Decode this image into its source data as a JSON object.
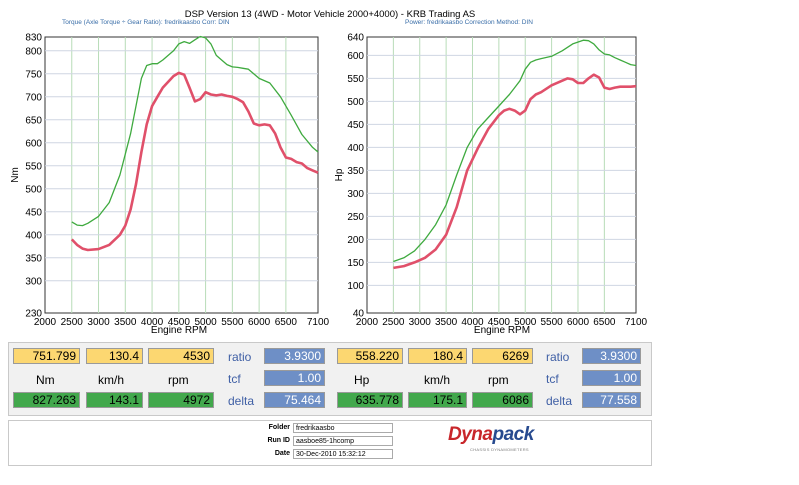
{
  "header": {
    "title": "DSP Version 13 (4WD - Motor Vehicle 2000+4000) - KRB Trading AS",
    "left_subtitle": "Torque (Axle Torque ÷ Gear Ratio): fredrikaasbo    Corr: DIN",
    "right_subtitle": "Power: fredrikaasbo    Correction Method: DIN"
  },
  "chart_data": [
    {
      "type": "line",
      "title": "",
      "xlabel": "Engine RPM",
      "ylabel": "Nm",
      "xlim": [
        2000,
        7100
      ],
      "ylim": [
        230,
        830
      ],
      "xticks": [
        "2000",
        "2500",
        "3000",
        "3500",
        "4000",
        "4500",
        "5000",
        "5500",
        "6000",
        "6500",
        "7100"
      ],
      "yticks": [
        "230",
        "300",
        "350",
        "400",
        "450",
        "500",
        "550",
        "600",
        "650",
        "700",
        "750",
        "800",
        "830"
      ],
      "grid": true,
      "series": [
        {
          "color": "#3faa3f",
          "points": [
            [
              2500,
              428
            ],
            [
              2600,
              421
            ],
            [
              2700,
              420
            ],
            [
              2800,
              425
            ],
            [
              3000,
              440
            ],
            [
              3200,
              470
            ],
            [
              3400,
              530
            ],
            [
              3600,
              620
            ],
            [
              3700,
              680
            ],
            [
              3800,
              740
            ],
            [
              3900,
              768
            ],
            [
              4000,
              772
            ],
            [
              4100,
              772
            ],
            [
              4200,
              780
            ],
            [
              4400,
              800
            ],
            [
              4500,
              815
            ],
            [
              4600,
              820
            ],
            [
              4700,
              816
            ],
            [
              4800,
              824
            ],
            [
              4900,
              831
            ],
            [
              5000,
              828
            ],
            [
              5100,
              815
            ],
            [
              5200,
              790
            ],
            [
              5300,
              780
            ],
            [
              5400,
              770
            ],
            [
              5500,
              765
            ],
            [
              5600,
              764
            ],
            [
              5700,
              762
            ],
            [
              5800,
              760
            ],
            [
              6000,
              740
            ],
            [
              6200,
              730
            ],
            [
              6400,
              700
            ],
            [
              6600,
              660
            ],
            [
              6800,
              618
            ],
            [
              7000,
              590
            ],
            [
              7100,
              580
            ]
          ]
        },
        {
          "color": "#e0506a",
          "points": [
            [
              2500,
              390
            ],
            [
              2600,
              378
            ],
            [
              2700,
              370
            ],
            [
              2800,
              367
            ],
            [
              3000,
              369
            ],
            [
              3200,
              378
            ],
            [
              3400,
              400
            ],
            [
              3500,
              420
            ],
            [
              3600,
              455
            ],
            [
              3700,
              510
            ],
            [
              3800,
              580
            ],
            [
              3900,
              640
            ],
            [
              4000,
              680
            ],
            [
              4100,
              700
            ],
            [
              4200,
              720
            ],
            [
              4400,
              745
            ],
            [
              4500,
              752
            ],
            [
              4600,
              748
            ],
            [
              4700,
              720
            ],
            [
              4800,
              690
            ],
            [
              4900,
              695
            ],
            [
              5000,
              710
            ],
            [
              5100,
              705
            ],
            [
              5200,
              703
            ],
            [
              5300,
              705
            ],
            [
              5400,
              702
            ],
            [
              5500,
              700
            ],
            [
              5600,
              695
            ],
            [
              5700,
              688
            ],
            [
              5800,
              668
            ],
            [
              5900,
              642
            ],
            [
              6000,
              638
            ],
            [
              6100,
              640
            ],
            [
              6200,
              638
            ],
            [
              6300,
              620
            ],
            [
              6400,
              590
            ],
            [
              6500,
              568
            ],
            [
              6600,
              565
            ],
            [
              6700,
              558
            ],
            [
              6800,
              555
            ],
            [
              6900,
              545
            ],
            [
              7000,
              540
            ],
            [
              7100,
              535
            ]
          ]
        }
      ]
    },
    {
      "type": "line",
      "title": "",
      "xlabel": "Engine RPM",
      "ylabel": "Hp",
      "xlim": [
        2000,
        7100
      ],
      "ylim": [
        40,
        640
      ],
      "xticks": [
        "2000",
        "2500",
        "3000",
        "3500",
        "4000",
        "4500",
        "5000",
        "5500",
        "6000",
        "6500",
        "7100"
      ],
      "yticks": [
        "40",
        "100",
        "150",
        "200",
        "250",
        "300",
        "350",
        "400",
        "450",
        "500",
        "550",
        "600",
        "640"
      ],
      "grid": true,
      "series": [
        {
          "color": "#3faa3f",
          "points": [
            [
              2500,
              152
            ],
            [
              2700,
              160
            ],
            [
              2900,
              175
            ],
            [
              3100,
              200
            ],
            [
              3300,
              232
            ],
            [
              3500,
              275
            ],
            [
              3700,
              340
            ],
            [
              3900,
              400
            ],
            [
              4100,
              440
            ],
            [
              4300,
              465
            ],
            [
              4500,
              490
            ],
            [
              4700,
              515
            ],
            [
              4800,
              530
            ],
            [
              4900,
              545
            ],
            [
              5000,
              570
            ],
            [
              5100,
              585
            ],
            [
              5200,
              590
            ],
            [
              5300,
              593
            ],
            [
              5500,
              598
            ],
            [
              5700,
              610
            ],
            [
              5900,
              625
            ],
            [
              6100,
              633
            ],
            [
              6200,
              632
            ],
            [
              6300,
              625
            ],
            [
              6400,
              612
            ],
            [
              6500,
              603
            ],
            [
              6600,
              601
            ],
            [
              6700,
              595
            ],
            [
              6800,
              590
            ],
            [
              6900,
              585
            ],
            [
              7000,
              580
            ],
            [
              7100,
              578
            ]
          ]
        },
        {
          "color": "#e0506a",
          "points": [
            [
              2500,
              138
            ],
            [
              2700,
              142
            ],
            [
              2900,
              150
            ],
            [
              3100,
              160
            ],
            [
              3300,
              178
            ],
            [
              3500,
              210
            ],
            [
              3700,
              270
            ],
            [
              3900,
              350
            ],
            [
              4100,
              398
            ],
            [
              4300,
              440
            ],
            [
              4500,
              470
            ],
            [
              4600,
              480
            ],
            [
              4700,
              484
            ],
            [
              4800,
              480
            ],
            [
              4900,
              472
            ],
            [
              5000,
              480
            ],
            [
              5100,
              505
            ],
            [
              5200,
              515
            ],
            [
              5300,
              520
            ],
            [
              5500,
              535
            ],
            [
              5700,
              545
            ],
            [
              5800,
              550
            ],
            [
              5900,
              548
            ],
            [
              6000,
              540
            ],
            [
              6100,
              540
            ],
            [
              6200,
              550
            ],
            [
              6300,
              558
            ],
            [
              6400,
              552
            ],
            [
              6500,
              530
            ],
            [
              6600,
              527
            ],
            [
              6700,
              530
            ],
            [
              6800,
              532
            ],
            [
              7000,
              532
            ],
            [
              7100,
              533
            ]
          ]
        }
      ]
    }
  ],
  "results": {
    "torque": {
      "top_value": "751.799",
      "top_speed": "130.4",
      "top_rpm": "4530",
      "ratio_label": "ratio",
      "ratio_value": "3.9300",
      "unit": "Nm",
      "speed_unit": "km/h",
      "rpm_unit": "rpm",
      "tcf_label": "tcf",
      "tcf_value": "1.00",
      "bottom_value": "827.263",
      "bottom_speed": "143.1",
      "bottom_rpm": "4972",
      "delta_label": "delta",
      "delta_value": "75.464"
    },
    "power": {
      "top_value": "558.220",
      "top_speed": "180.4",
      "top_rpm": "6269",
      "ratio_label": "ratio",
      "ratio_value": "3.9300",
      "unit": "Hp",
      "speed_unit": "km/h",
      "rpm_unit": "rpm",
      "tcf_label": "tcf",
      "tcf_value": "1.00",
      "bottom_value": "635.778",
      "bottom_speed": "175.1",
      "bottom_rpm": "6086",
      "delta_label": "delta",
      "delta_value": "77.558"
    }
  },
  "footer": {
    "folder_label": "Folder",
    "folder_value": "fredrikaasbo",
    "runid_label": "Run ID",
    "runid_value": "aasboe85-1hcomp",
    "date_label": "Date",
    "date_value": "30-Dec-2010 15:32:12"
  },
  "logo": {
    "part1": "Dyna",
    "part2": "pack",
    "tagline": "CHASSIS DYNAMOMETERS"
  }
}
